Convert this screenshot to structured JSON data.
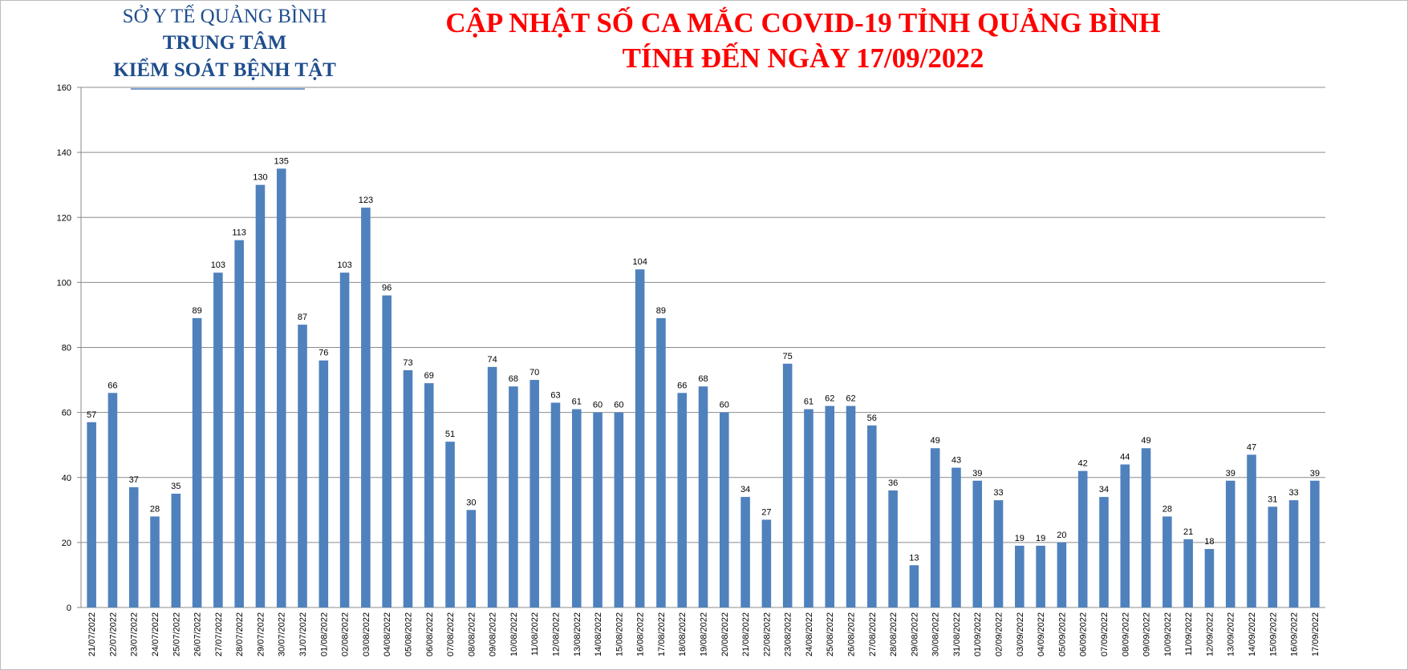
{
  "header": {
    "lines": [
      "SỞ Y TẾ QUẢNG BÌNH",
      "TRUNG TÂM",
      "KIỂM SOÁT BỆNH TẬT"
    ]
  },
  "chart_data": {
    "type": "bar",
    "title": "CẬP NHẬT SỐ CA MẮC COVID-19 TỈNH QUẢNG BÌNH",
    "subtitle": "TÍNH ĐẾN NGÀY 17/09/2022",
    "categories": [
      "21/07/2022",
      "22/07/2022",
      "23/07/2022",
      "24/07/2022",
      "25/07/2022",
      "26/07/2022",
      "27/07/2022",
      "28/07/2022",
      "29/07/2022",
      "30/07/2022",
      "31/07/2022",
      "01/08/2022",
      "02/08/2022",
      "03/08/2022",
      "04/08/2022",
      "05/08/2022",
      "06/08/2022",
      "07/08/2022",
      "08/08/2022",
      "09/08/2022",
      "10/08/2022",
      "11/08/2022",
      "12/08/2022",
      "13/08/2022",
      "14/08/2022",
      "15/08/2022",
      "16/08/2022",
      "17/08/2022",
      "18/08/2022",
      "19/08/2022",
      "20/08/2022",
      "21/08/2022",
      "22/08/2022",
      "23/08/2022",
      "24/08/2022",
      "25/08/2022",
      "26/08/2022",
      "27/08/2022",
      "28/08/2022",
      "29/08/2022",
      "30/08/2022",
      "31/08/2022",
      "01/09/2022",
      "02/09/2022",
      "03/09/2022",
      "04/09/2022",
      "05/09/2022",
      "06/09/2022",
      "07/09/2022",
      "08/09/2022",
      "09/09/2022",
      "10/09/2022",
      "11/09/2022",
      "12/09/2022",
      "13/09/2022",
      "14/09/2022",
      "15/09/2022",
      "16/09/2022",
      "17/09/2022"
    ],
    "values": [
      57,
      66,
      37,
      28,
      35,
      89,
      103,
      113,
      130,
      135,
      87,
      76,
      103,
      123,
      96,
      73,
      69,
      51,
      30,
      74,
      68,
      70,
      63,
      61,
      60,
      60,
      104,
      89,
      66,
      68,
      60,
      34,
      27,
      75,
      61,
      62,
      62,
      56,
      36,
      13,
      49,
      43,
      39,
      33,
      19,
      19,
      20,
      42,
      34,
      44,
      49,
      28,
      21,
      18,
      39,
      47,
      31,
      33,
      39
    ],
    "color": "#4f81bd",
    "ylim": [
      0,
      160
    ],
    "yticks": [
      0,
      20,
      40,
      60,
      80,
      100,
      120,
      140,
      160
    ],
    "grid": true
  }
}
